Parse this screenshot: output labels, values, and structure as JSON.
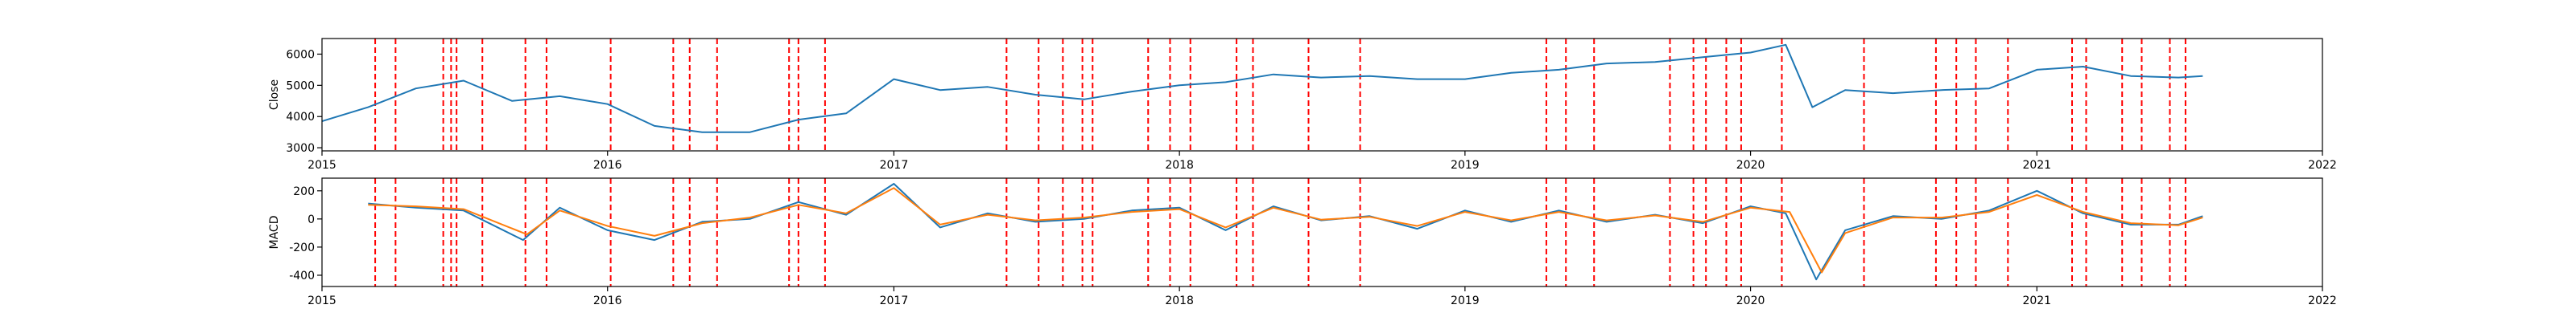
{
  "chart_data": [
    {
      "type": "line",
      "ylabel": "Close",
      "ylim": [
        2900,
        6500
      ],
      "xlim": [
        "2015-01-01",
        "2022-01-01"
      ],
      "yticks": [
        3000,
        4000,
        5000,
        6000
      ],
      "grid": false,
      "series": [
        {
          "color": "#1f77b4",
          "x": [
            "2015-01-01",
            "2015-03-01",
            "2015-05-01",
            "2015-07-01",
            "2015-09-01",
            "2015-11-01",
            "2016-01-01",
            "2016-03-01",
            "2016-05-01",
            "2016-07-01",
            "2016-09-01",
            "2016-11-01",
            "2017-01-01",
            "2017-03-01",
            "2017-05-01",
            "2017-07-01",
            "2017-09-01",
            "2017-11-01",
            "2018-01-01",
            "2018-03-01",
            "2018-05-01",
            "2018-07-01",
            "2018-09-01",
            "2018-11-01",
            "2019-01-01",
            "2019-03-01",
            "2019-05-01",
            "2019-07-01",
            "2019-09-01",
            "2019-11-01",
            "2020-01-01",
            "2020-02-15",
            "2020-03-20",
            "2020-05-01",
            "2020-07-01",
            "2020-09-01",
            "2020-11-01",
            "2021-01-01",
            "2021-03-01",
            "2021-05-01",
            "2021-07-01",
            "2021-08-01"
          ],
          "values": [
            3850,
            4300,
            4900,
            5150,
            4500,
            4650,
            4400,
            3700,
            3500,
            3500,
            3900,
            4100,
            5200,
            4850,
            4950,
            4700,
            4550,
            4800,
            5000,
            5100,
            5350,
            5250,
            5300,
            5200,
            5200,
            5400,
            5500,
            5700,
            5750,
            5900,
            6050,
            6300,
            4300,
            4850,
            4750,
            4850,
            4900,
            5500,
            5600,
            5300,
            5250,
            5300
          ]
        }
      ]
    },
    {
      "type": "line",
      "ylabel": "MACD",
      "ylim": [
        -480,
        290
      ],
      "xlim": [
        "2015-01-01",
        "2022-01-01"
      ],
      "yticks": [
        -400,
        -200,
        0,
        200
      ],
      "grid": false,
      "series": [
        {
          "color": "#1f77b4",
          "x": [
            "2015-03-01",
            "2015-05-01",
            "2015-07-01",
            "2015-09-15",
            "2015-11-01",
            "2016-01-01",
            "2016-03-01",
            "2016-05-01",
            "2016-07-01",
            "2016-09-01",
            "2016-11-01",
            "2017-01-01",
            "2017-03-01",
            "2017-05-01",
            "2017-07-01",
            "2017-09-01",
            "2017-11-01",
            "2018-01-01",
            "2018-03-01",
            "2018-05-01",
            "2018-07-01",
            "2018-09-01",
            "2018-11-01",
            "2019-01-01",
            "2019-03-01",
            "2019-05-01",
            "2019-07-01",
            "2019-09-01",
            "2019-11-01",
            "2020-01-01",
            "2020-02-15",
            "2020-03-25",
            "2020-05-01",
            "2020-07-01",
            "2020-09-01",
            "2020-11-01",
            "2021-01-01",
            "2021-03-01",
            "2021-05-01",
            "2021-07-01",
            "2021-08-01"
          ],
          "values": [
            110,
            80,
            60,
            -150,
            80,
            -80,
            -150,
            -20,
            0,
            120,
            30,
            250,
            -60,
            40,
            -20,
            0,
            60,
            80,
            -80,
            90,
            -10,
            20,
            -70,
            60,
            -20,
            60,
            -20,
            30,
            -30,
            90,
            40,
            -430,
            -80,
            20,
            0,
            60,
            200,
            40,
            -40,
            -40,
            20
          ]
        },
        {
          "color": "#ff7f0e",
          "x": [
            "2015-03-01",
            "2015-05-01",
            "2015-07-01",
            "2015-09-20",
            "2015-11-01",
            "2016-01-01",
            "2016-03-01",
            "2016-05-01",
            "2016-07-01",
            "2016-09-01",
            "2016-11-01",
            "2017-01-01",
            "2017-03-01",
            "2017-05-01",
            "2017-07-01",
            "2017-09-01",
            "2017-11-01",
            "2018-01-01",
            "2018-03-01",
            "2018-05-01",
            "2018-07-01",
            "2018-09-01",
            "2018-11-01",
            "2019-01-01",
            "2019-03-01",
            "2019-05-01",
            "2019-07-01",
            "2019-09-01",
            "2019-11-01",
            "2020-01-01",
            "2020-02-20",
            "2020-04-01",
            "2020-05-01",
            "2020-07-01",
            "2020-09-01",
            "2020-11-01",
            "2021-01-01",
            "2021-03-01",
            "2021-05-01",
            "2021-07-01",
            "2021-08-01"
          ],
          "values": [
            100,
            90,
            70,
            -110,
            60,
            -50,
            -120,
            -30,
            10,
            100,
            40,
            220,
            -40,
            30,
            -10,
            10,
            50,
            70,
            -60,
            80,
            -5,
            15,
            -50,
            50,
            -10,
            50,
            -10,
            25,
            -20,
            80,
            50,
            -380,
            -100,
            10,
            10,
            50,
            170,
            50,
            -30,
            -45,
            10
          ]
        }
      ]
    }
  ],
  "x_tick_labels": [
    "2015",
    "2016",
    "2017",
    "2018",
    "2019",
    "2020",
    "2021",
    "2022"
  ],
  "signal_dates": [
    "2015-03-10",
    "2015-04-05",
    "2015-06-05",
    "2015-06-15",
    "2015-06-22",
    "2015-07-25",
    "2015-09-18",
    "2015-10-15",
    "2016-01-05",
    "2016-03-25",
    "2016-04-15",
    "2016-05-20",
    "2016-08-20",
    "2016-09-01",
    "2016-10-05",
    "2017-05-25",
    "2017-07-05",
    "2017-08-05",
    "2017-08-30",
    "2017-09-12",
    "2017-11-22",
    "2017-12-20",
    "2018-01-15",
    "2018-03-15",
    "2018-04-05",
    "2018-06-15",
    "2018-08-20",
    "2019-04-15",
    "2019-05-10",
    "2019-06-15",
    "2019-09-20",
    "2019-10-20",
    "2019-11-05",
    "2019-12-01",
    "2019-12-20",
    "2020-02-10",
    "2020-05-25",
    "2020-08-25",
    "2020-09-20",
    "2020-10-15",
    "2020-11-25",
    "2021-02-15",
    "2021-03-05",
    "2021-04-20",
    "2021-05-15",
    "2021-06-20",
    "2021-07-10"
  ],
  "signal_color": "#ff0000",
  "axes_color": "#000000"
}
